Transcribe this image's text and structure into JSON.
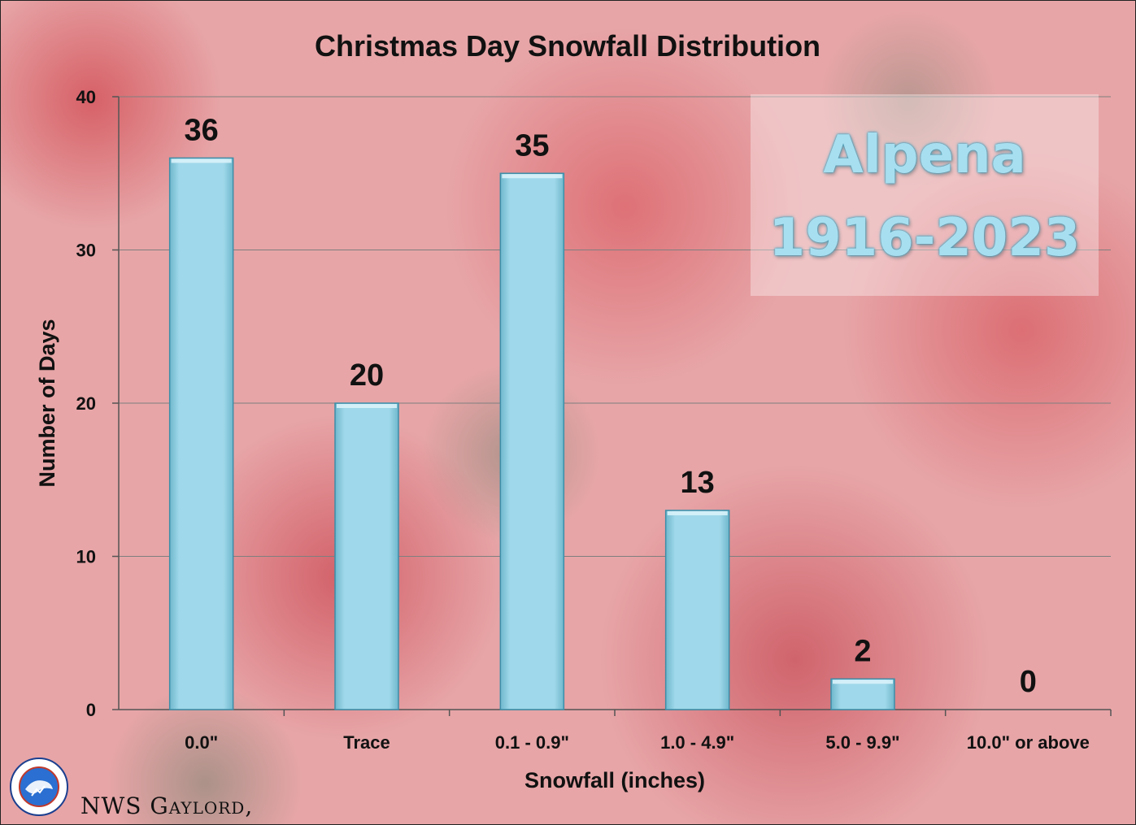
{
  "chart_data": {
    "type": "bar",
    "title": "Christmas Day Snowfall Distribution",
    "xlabel": "Snowfall (inches)",
    "ylabel": "Number of Days",
    "categories": [
      "0.0\"",
      "Trace",
      "0.1 - 0.9\"",
      "1.0 - 4.9\"",
      "5.0 - 9.9\"",
      "10.0\" or above"
    ],
    "values": [
      36,
      20,
      35,
      13,
      2,
      0
    ],
    "data_labels": [
      "36",
      "20",
      "35",
      "13",
      "2",
      "0"
    ],
    "ylim": [
      0,
      40
    ],
    "yticks": [
      0,
      10,
      20,
      30,
      40
    ],
    "ytick_labels": [
      "0",
      "10",
      "20",
      "30",
      "40"
    ],
    "grid": true,
    "bar_color": "#9fd8ea"
  },
  "stamp": {
    "location": "Alpena",
    "period": "1916-2023"
  },
  "footer": {
    "office": "NWS Gaylord,",
    "logo_text": "NATIONAL WEATHER SERVICE"
  },
  "colors": {
    "background": "#e7a5a7",
    "stamp_text": "#a8dff0"
  }
}
